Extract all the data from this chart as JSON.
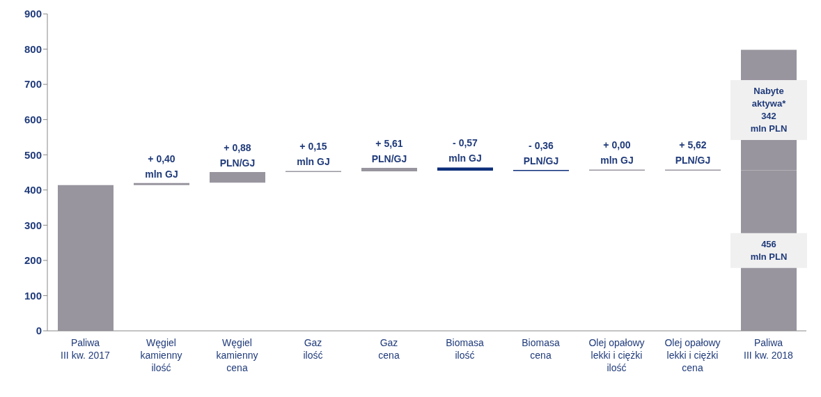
{
  "chart_data": {
    "type": "bar",
    "categories": [
      "Paliwa\nIII kw. 2017",
      "Węgiel\nkamienny\nilość",
      "Węgiel\nkamienny\ncena",
      "Gaz\nilość",
      "Gaz\ncena",
      "Biomasa\nilość",
      "Biomasa\ncena",
      "Olej opałowy\nlekki i ciężki\nilość",
      "Olej opałowy\nlekki i ciężki\ncena",
      "Paliwa\nIII kw. 2018"
    ],
    "series": [
      {
        "color": "#99959f",
        "colors": [
          "#99959f",
          "#99959f",
          "#99959f",
          "#99959f",
          "#99959f",
          "#0d2f7a",
          "#0d2f7a",
          "#99959f",
          "#99959f",
          "#99959f"
        ],
        "base": [
          0,
          414,
          421,
          451,
          453,
          464,
          455,
          455,
          455,
          0
        ],
        "values": [
          414,
          6,
          30,
          2,
          10,
          -9,
          -1,
          1,
          1,
          456
        ],
        "value_labels": [
          null,
          null,
          null,
          null,
          null,
          null,
          null,
          null,
          null,
          "456\nmln PLN"
        ]
      },
      {
        "color": "#99959f",
        "base": [
          null,
          null,
          null,
          null,
          null,
          null,
          null,
          null,
          null,
          456
        ],
        "values": [
          null,
          null,
          null,
          null,
          null,
          null,
          null,
          null,
          null,
          342
        ],
        "value_labels": [
          null,
          null,
          null,
          null,
          null,
          null,
          null,
          null,
          null,
          "Nabyte\naktywa*\n342\nmln PLN"
        ]
      }
    ],
    "annotations": [
      "+ 0,40\nmln GJ",
      "+ 0,88\nPLN/GJ",
      "+ 0,15\nmln GJ",
      "+ 5,61\nPLN/GJ",
      "- 0,57\nmln GJ",
      "- 0,36\nPLN/GJ",
      "+ 0,00\nmln GJ",
      "+ 5,62\nPLN/GJ"
    ],
    "ylim": [
      0,
      900
    ],
    "yticks": [
      0,
      100,
      200,
      300,
      400,
      500,
      600,
      700,
      800,
      900
    ],
    "grid": false,
    "legend": false
  }
}
